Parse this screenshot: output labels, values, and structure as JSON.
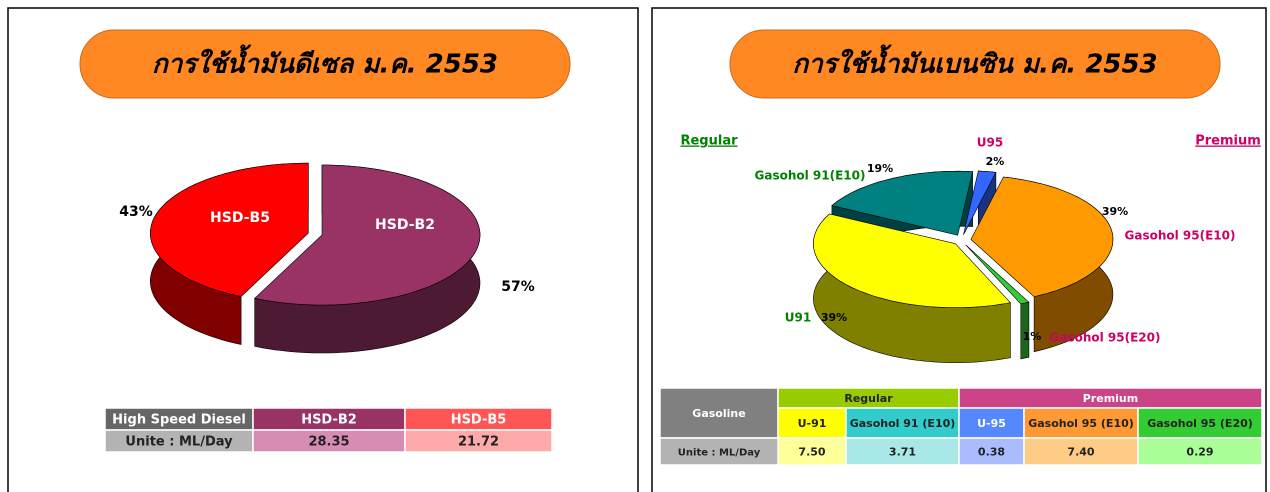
{
  "chart_data": [
    {
      "type": "pie",
      "title": "การใช้น้ำมันดีเซล ม.ค. 2553",
      "categories": [
        "HSD-B2",
        "HSD-B5"
      ],
      "values": [
        57,
        43
      ],
      "value_labels": [
        "57%",
        "43%"
      ],
      "colors": [
        "#993366",
        "#ff0000"
      ],
      "label_colors": [
        "#ffffff",
        "#ffffff"
      ],
      "table": {
        "headers": [
          "High Speed Diesel",
          "HSD-B2",
          "HSD-B5"
        ],
        "row": [
          "Unite : ML/Day",
          "28.35",
          "21.72"
        ]
      }
    },
    {
      "type": "pie",
      "title": "การใช้น้ำมันเบนซิน ม.ค. 2553",
      "categories": [
        "U95",
        "Gasohol 95(E10)",
        "Gasohol 95(E20)",
        "U91",
        "Gasohol 91(E10)"
      ],
      "values": [
        2,
        39,
        1,
        39,
        19
      ],
      "value_labels": [
        "2%",
        "39%",
        "1%",
        "39%",
        "19%"
      ],
      "colors": [
        "#3366ff",
        "#ff9900",
        "#33cc33",
        "#ffff00",
        "#008080"
      ],
      "label_colors": [
        "#cc0066",
        "#cc0066",
        "#cc0066",
        "#008000",
        "#008000"
      ],
      "annotations": [
        "Regular",
        "Premium"
      ],
      "table": {
        "corner": "Gasoline",
        "groups": [
          {
            "name": "Regular",
            "columns": [
              "U-91",
              "Gasohol 91 (E10)"
            ]
          },
          {
            "name": "Premium",
            "columns": [
              "U-95",
              "Gasohol 95 (E10)",
              "Gasohol 95 (E20)"
            ]
          }
        ],
        "row_label": "Unite : ML/Day",
        "values": [
          "7.50",
          "3.71",
          "0.38",
          "7.40",
          "0.29"
        ]
      }
    }
  ]
}
